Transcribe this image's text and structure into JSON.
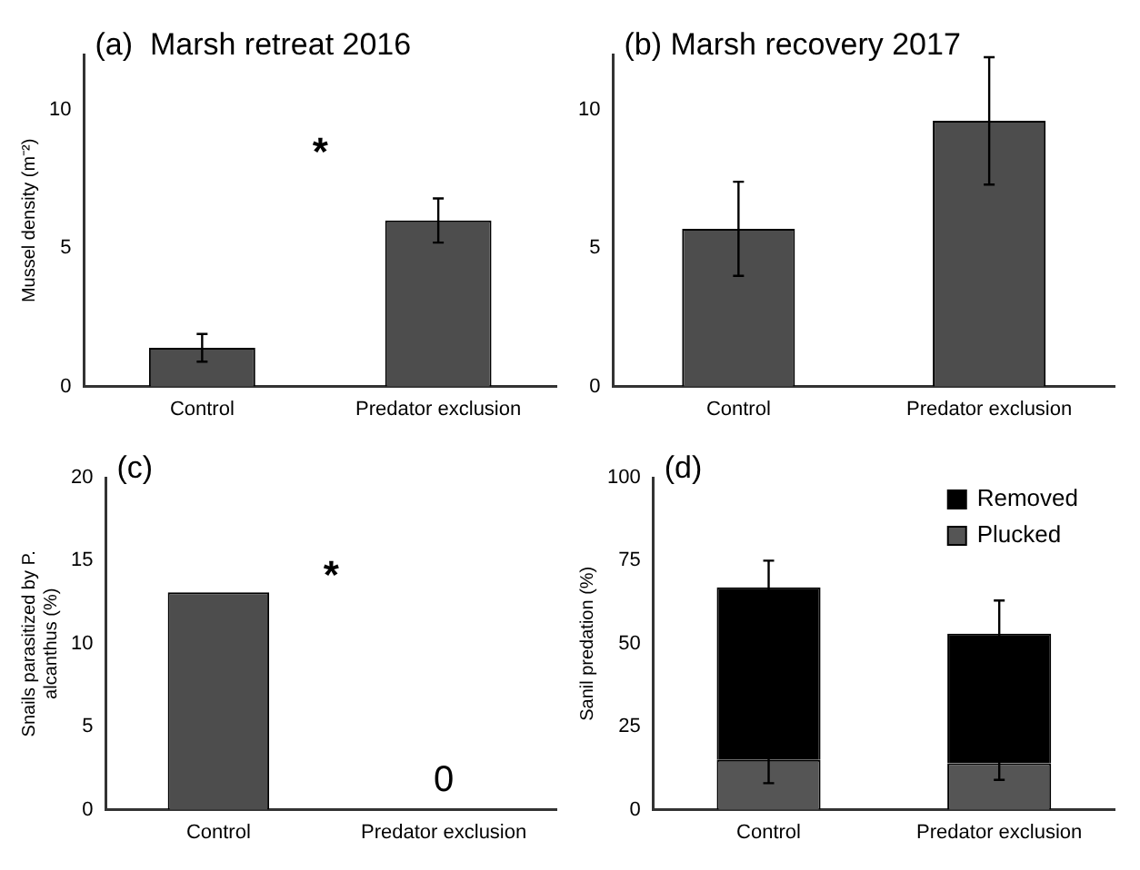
{
  "chart_data": [
    {
      "type": "bar",
      "title": "(a)  Marsh retreat 2016",
      "ylabel": "Mussel density (m⁻²)",
      "categories": [
        "Control",
        "Predator exclusion"
      ],
      "values": [
        1.4,
        6.0
      ],
      "errors": [
        0.5,
        0.8
      ],
      "color": "#4d4d4d",
      "ylim": [
        0,
        12
      ],
      "yticks": [
        0,
        5,
        10
      ],
      "annotations": [
        "*"
      ],
      "grid": false,
      "legend": false
    },
    {
      "type": "bar",
      "title": "(b) Marsh recovery 2017",
      "categories": [
        "Control",
        "Predator exclusion"
      ],
      "values": [
        5.7,
        9.6
      ],
      "errors": [
        1.7,
        2.3
      ],
      "color": "#4d4d4d",
      "ylim": [
        0,
        12
      ],
      "yticks": [
        0,
        5,
        10
      ],
      "grid": false,
      "legend": false
    },
    {
      "type": "bar",
      "title": "(c)",
      "ylabel": "Snails parasitized by P. alcanthus (%)",
      "categories": [
        "Control",
        "Predator exclusion"
      ],
      "values": [
        13.1,
        0
      ],
      "value_labels": [
        null,
        "0"
      ],
      "color": "#4d4d4d",
      "ylim": [
        0,
        20
      ],
      "yticks": [
        0,
        5,
        10,
        15,
        20
      ],
      "annotations": [
        "*"
      ],
      "grid": false,
      "legend": false
    },
    {
      "type": "bar",
      "title": "(d)",
      "ylabel": "Sanil predation (%)",
      "categories": [
        "Control",
        "Predator exclusion"
      ],
      "stacked": true,
      "ylim": [
        0,
        100
      ],
      "yticks": [
        0,
        25,
        50,
        75,
        100
      ],
      "grid": false,
      "legend": "top right",
      "series": [
        {
          "name": "Plucked",
          "color": "#555555",
          "values": [
            15,
            14
          ],
          "errors": [
            7,
            5
          ]
        },
        {
          "name": "Removed",
          "color": "#000000",
          "values": [
            52,
            39
          ],
          "errors": [
            8,
            10
          ]
        }
      ]
    }
  ]
}
